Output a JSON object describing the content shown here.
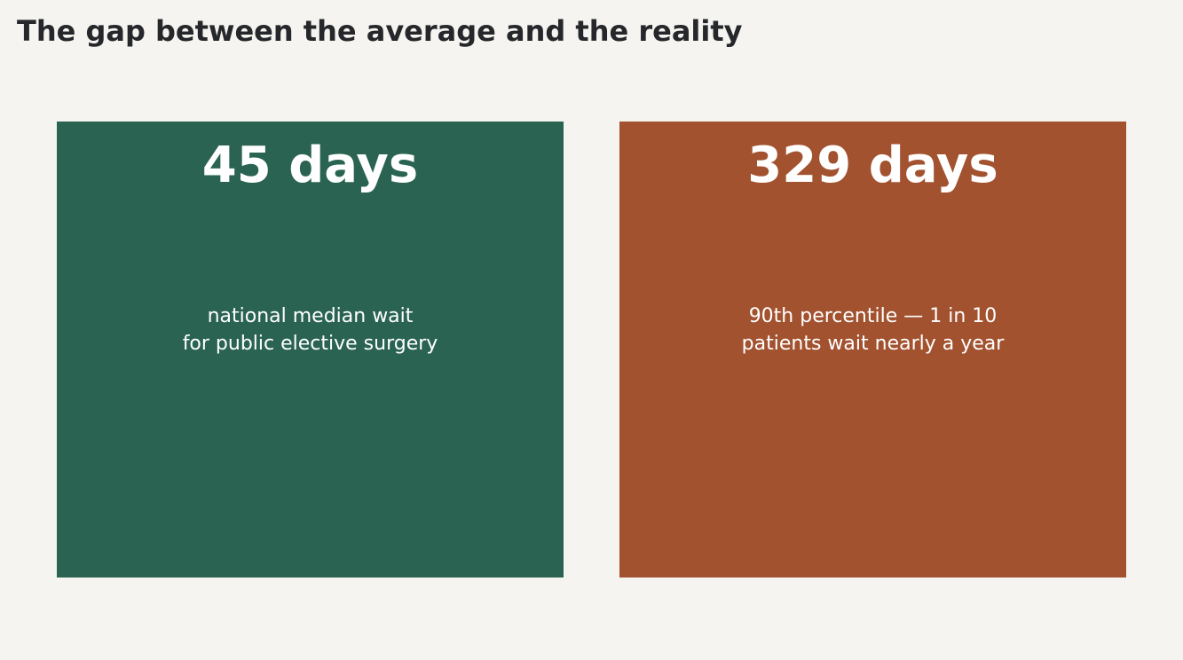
{
  "title": "The gap between the average and the reality",
  "chart_data": {
    "type": "stat-comparison",
    "unit": "days",
    "items": [
      {
        "value": 45,
        "display": "45 days",
        "description": [
          "national median wait",
          "for public elective surgery"
        ],
        "color": "#2a6352"
      },
      {
        "value": 329,
        "display": "329 days",
        "description": [
          "90th percentile — 1 in 10",
          "patients wait nearly a year"
        ],
        "color": "#a2522f"
      }
    ]
  }
}
